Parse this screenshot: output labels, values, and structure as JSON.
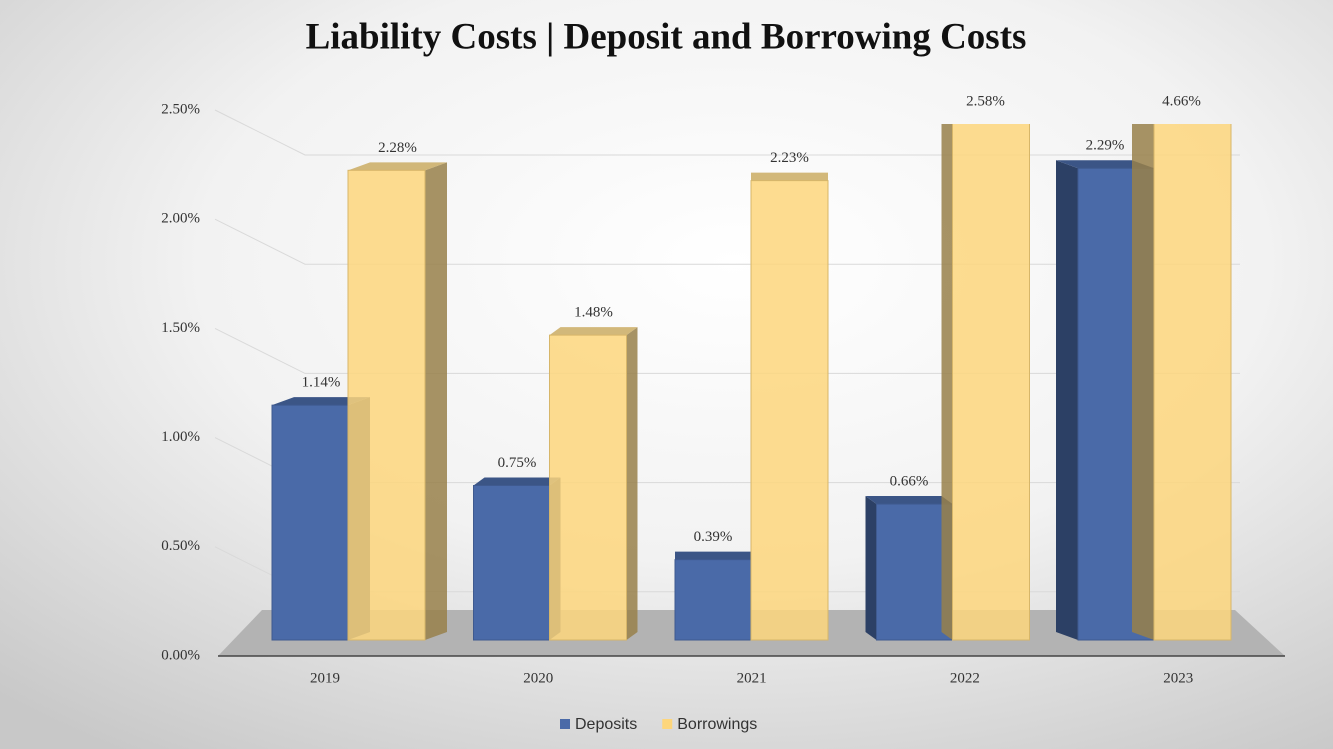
{
  "chart_data": {
    "type": "bar3d",
    "title": "Liability Costs | Deposit and Borrowing Costs",
    "categories": [
      "2019",
      "2020",
      "2021",
      "2022",
      "2023"
    ],
    "series": [
      {
        "name": "Deposits",
        "color": "#4a6aa8",
        "values": [
          1.14,
          0.75,
          0.39,
          0.66,
          2.29
        ],
        "value_labels": [
          "1.14%",
          "0.75%",
          "0.39%",
          "0.66%",
          "2.29%"
        ]
      },
      {
        "name": "Borrowings",
        "color": "#fdd67c",
        "values": [
          2.28,
          1.48,
          2.23,
          2.58,
          4.66
        ],
        "value_labels": [
          "2.28%",
          "1.48%",
          "2.23%",
          "2.58%",
          "4.66%"
        ]
      }
    ],
    "ylim": [
      0,
      2.5
    ],
    "yticks": [
      {
        "value": 0,
        "label": "0.00%"
      },
      {
        "value": 0.5,
        "label": "0.50%"
      },
      {
        "value": 1,
        "label": "1.00%"
      },
      {
        "value": 1.5,
        "label": "1.50%"
      },
      {
        "value": 2,
        "label": "2.00%"
      },
      {
        "value": 2.5,
        "label": "2.50%"
      }
    ],
    "grid": true,
    "legend": "bottom"
  }
}
